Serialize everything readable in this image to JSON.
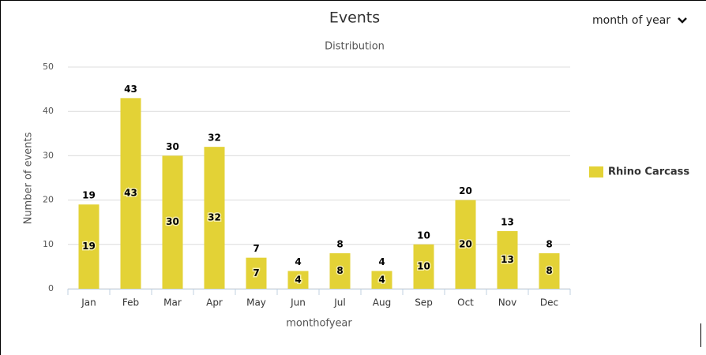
{
  "chart_data": {
    "type": "bar",
    "title": "Events",
    "subtitle": "Distribution",
    "x_label": "monthofyear",
    "y_label": "Number of events",
    "categories": [
      "Jan",
      "Feb",
      "Mar",
      "Apr",
      "May",
      "Jun",
      "Jul",
      "Aug",
      "Sep",
      "Oct",
      "Nov",
      "Dec"
    ],
    "series": [
      {
        "name": "Rhino Carcass",
        "color": "#e3d236",
        "values": [
          19,
          43,
          30,
          32,
          7,
          4,
          8,
          4,
          10,
          20,
          13,
          8
        ]
      }
    ],
    "ylim": [
      0,
      50
    ],
    "yticks": [
      0,
      10,
      20,
      30,
      40,
      50
    ],
    "grid": true,
    "legend": "right"
  },
  "dropdown": "month of year"
}
